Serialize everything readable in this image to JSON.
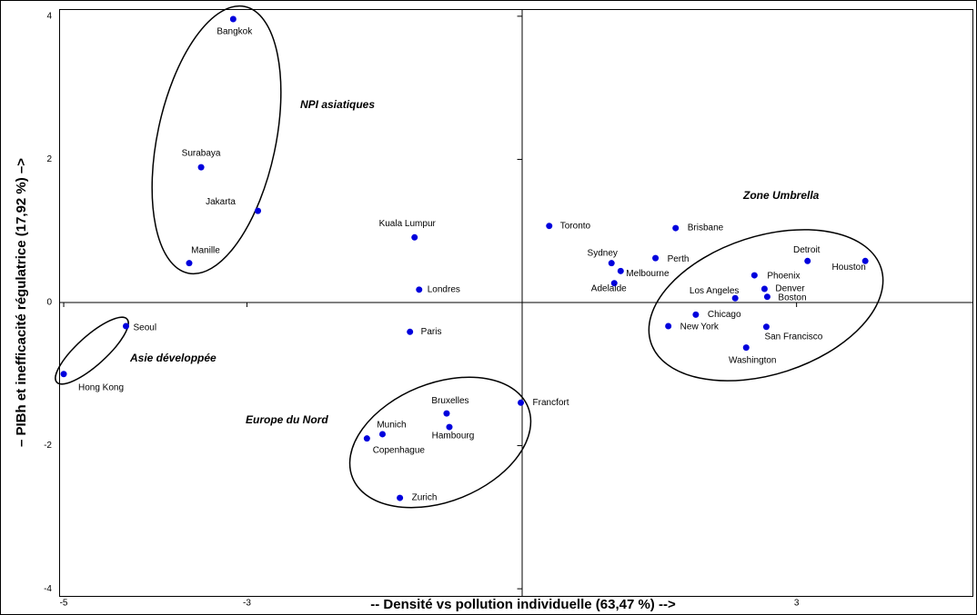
{
  "chart_data": {
    "type": "scatter",
    "x_label": "-- Densité vs pollution individuelle (63,47 %) -->",
    "y_label": "– PIBh et inefficacité régulatrice (17,92 %) –>",
    "annotations": [
      "NPI asiatiques",
      "Zone Umbrella",
      "Asie développée",
      "Europe du Nord"
    ],
    "color": "#0000dd",
    "xlim": [
      -5.05,
      4.93
    ],
    "ylim": [
      -4.1,
      4.1
    ],
    "xticks": [
      -5,
      -3,
      3
    ],
    "yticks": [
      4,
      2,
      0,
      -2,
      -4
    ],
    "labels": [
      "Bangkok",
      "Surabaya",
      "Jakarta",
      "Manille",
      "Kuala Lumpur",
      "Londres",
      "Seoul",
      "Hong Kong",
      "Paris",
      "Bruxelles",
      "Hambourg",
      "Munich",
      "Copenhague",
      "Zurich",
      "Francfort",
      "Toronto",
      "Brisbane",
      "Sydney",
      "Perth",
      "Melbourne",
      "Adelaide",
      "Los Angeles",
      "Detroit",
      "Houston",
      "Phoenix",
      "Denver",
      "Boston",
      "Chicago",
      "New York",
      "San Francisco",
      "Washington"
    ],
    "x": [
      -3.15,
      -3.5,
      -2.88,
      -3.63,
      -1.17,
      -1.12,
      -4.32,
      -5.0,
      -1.22,
      -0.82,
      -0.79,
      -1.52,
      -1.69,
      -1.33,
      -0.01,
      0.3,
      1.68,
      0.98,
      1.46,
      1.08,
      1.01,
      2.33,
      3.12,
      3.75,
      2.54,
      2.65,
      2.68,
      1.9,
      1.6,
      2.67,
      2.45
    ],
    "y": [
      3.96,
      1.89,
      1.28,
      0.55,
      0.91,
      0.18,
      -0.33,
      -1.0,
      -0.41,
      -1.55,
      -1.74,
      -1.84,
      -1.9,
      -2.73,
      -1.4,
      1.07,
      1.04,
      0.55,
      0.62,
      0.44,
      0.27,
      0.06,
      0.58,
      0.58,
      0.38,
      0.19,
      0.08,
      -0.17,
      -0.33,
      -0.34,
      -0.63
    ]
  }
}
